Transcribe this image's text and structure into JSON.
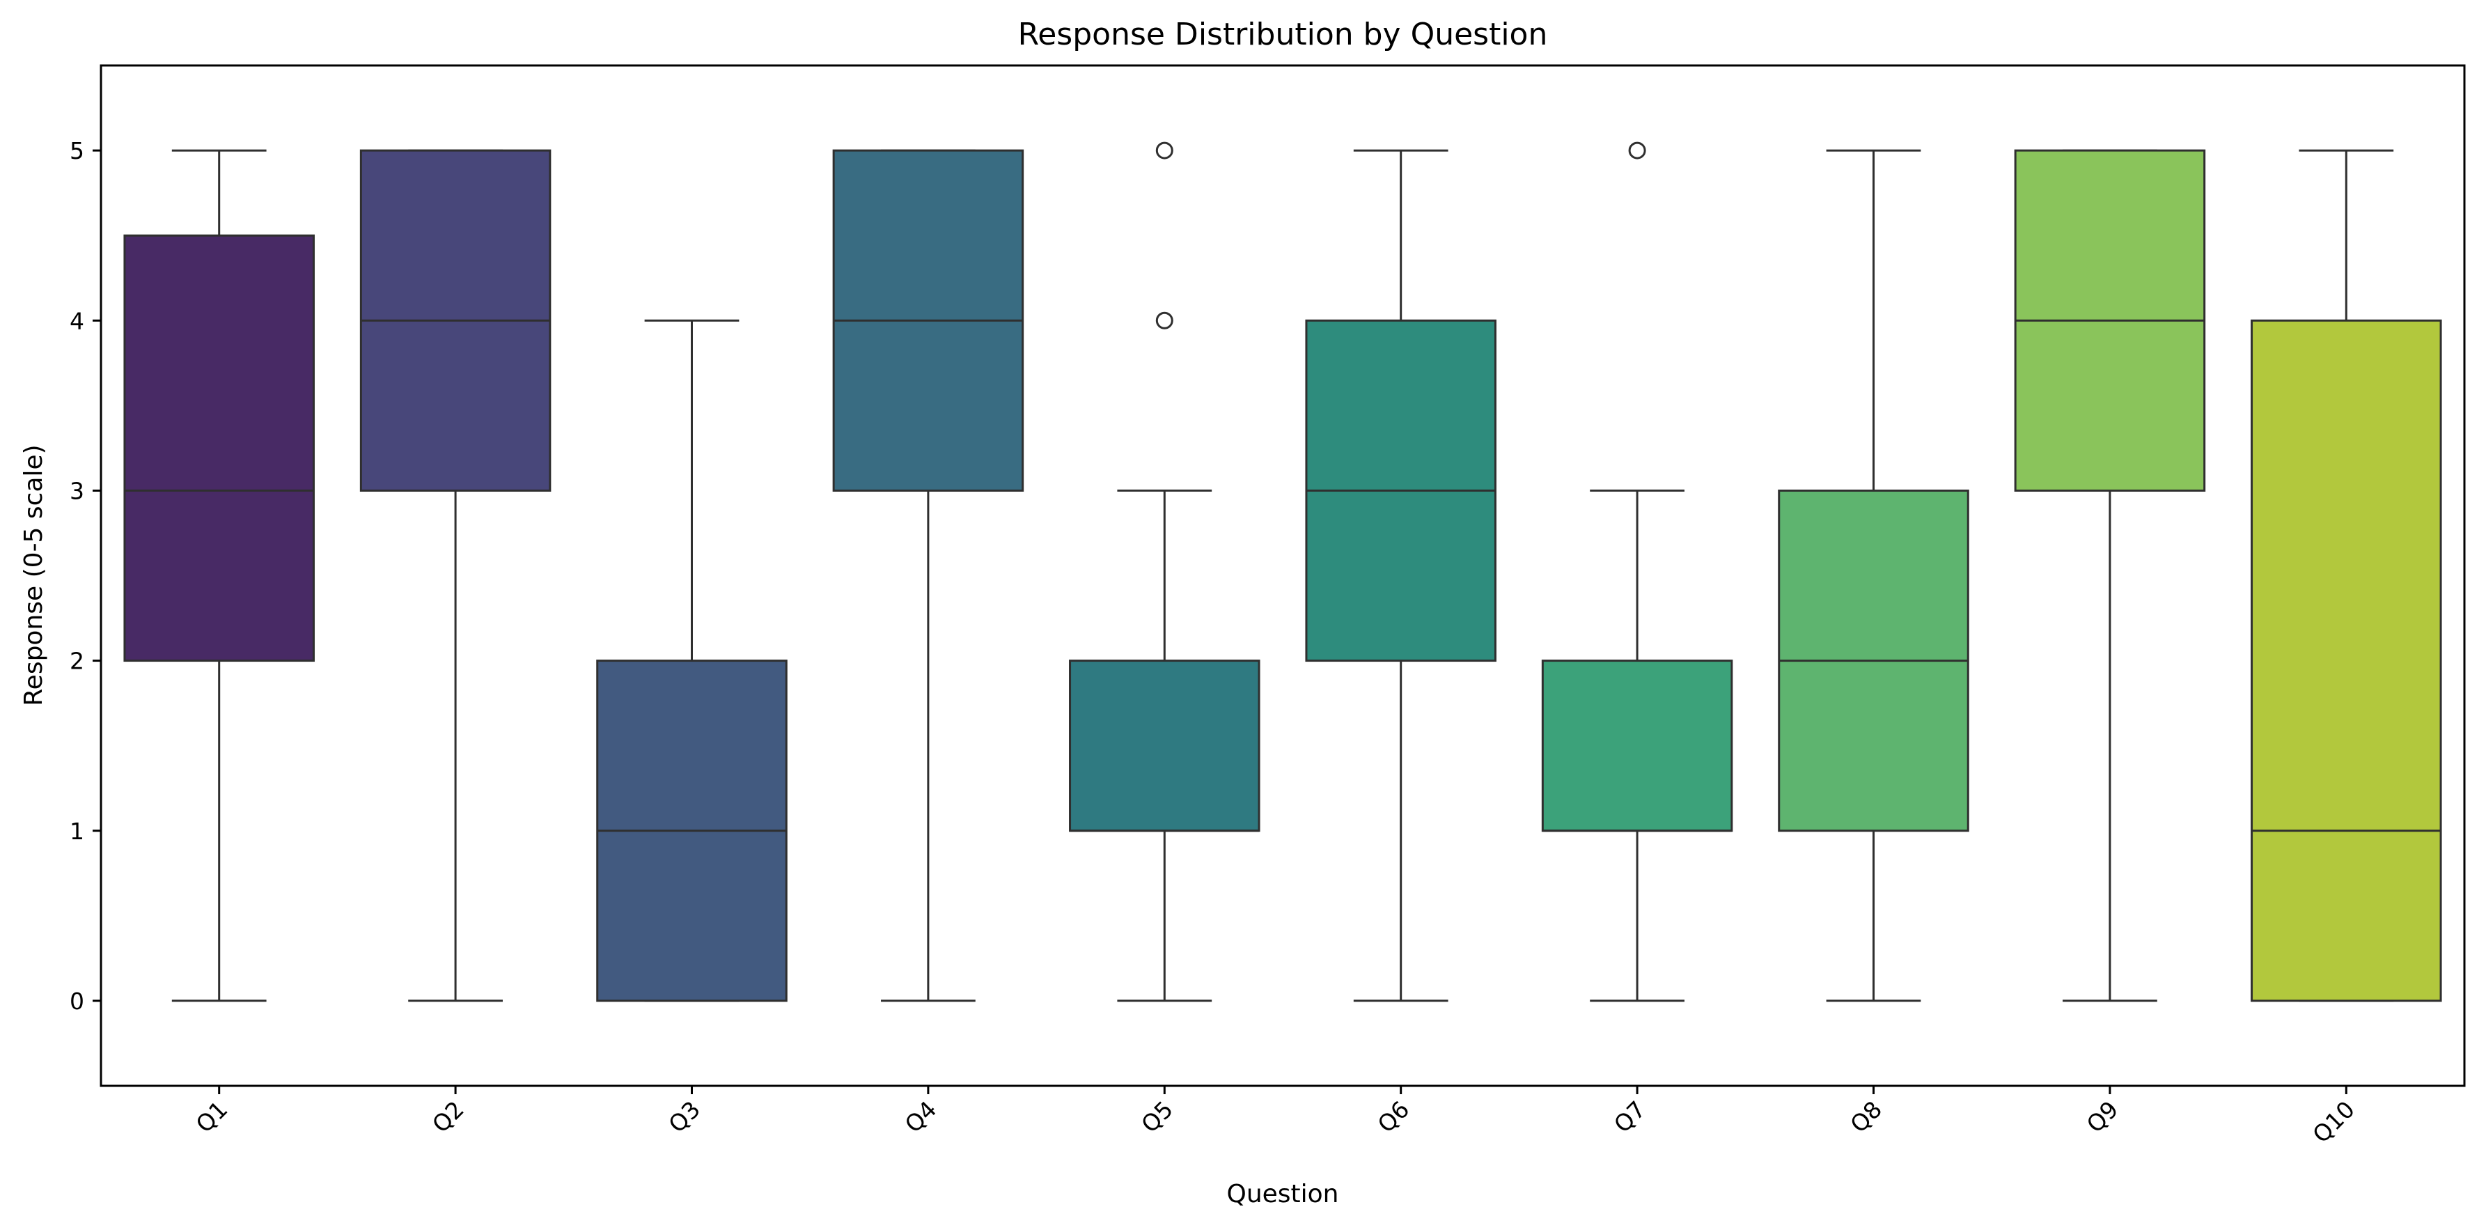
{
  "chart_data": {
    "type": "boxplot",
    "title": "Response Distribution by Question",
    "xlabel": "Question",
    "ylabel": "Response (0-5 scale)",
    "ylim": [
      -0.5,
      5.5
    ],
    "yticks": [
      "0",
      "1",
      "2",
      "3",
      "4",
      "5"
    ],
    "grid": false,
    "legend": "none",
    "categories": [
      "Q1",
      "Q2",
      "Q3",
      "Q4",
      "Q5",
      "Q6",
      "Q7",
      "Q8",
      "Q9",
      "Q10"
    ],
    "boxes": [
      {
        "category": "Q1",
        "whisker_low": 0,
        "q1": 2,
        "median": 3,
        "q3": 4.5,
        "whisker_high": 5,
        "outliers": [],
        "color": "#482A65"
      },
      {
        "category": "Q2",
        "whisker_low": 0,
        "q1": 3,
        "median": 4,
        "q3": 5,
        "whisker_high": 5,
        "outliers": [],
        "color": "#48477A"
      },
      {
        "category": "Q3",
        "whisker_low": 0,
        "q1": 0,
        "median": 1,
        "q3": 2,
        "whisker_high": 4,
        "outliers": [],
        "color": "#425A80"
      },
      {
        "category": "Q4",
        "whisker_low": 0,
        "q1": 3,
        "median": 4,
        "q3": 5,
        "whisker_high": 5,
        "outliers": [],
        "color": "#396C82"
      },
      {
        "category": "Q5",
        "whisker_low": 0,
        "q1": 1,
        "median": 1,
        "q3": 2,
        "whisker_high": 3,
        "outliers": [
          4,
          5
        ],
        "color": "#2F7A81"
      },
      {
        "category": "Q6",
        "whisker_low": 0,
        "q1": 2,
        "median": 3,
        "q3": 4,
        "whisker_high": 5,
        "outliers": [],
        "color": "#2E8C7D"
      },
      {
        "category": "Q7",
        "whisker_low": 0,
        "q1": 1,
        "median": 1,
        "q3": 2,
        "whisker_high": 3,
        "outliers": [
          5
        ],
        "color": "#3CA27A"
      },
      {
        "category": "Q8",
        "whisker_low": 0,
        "q1": 1,
        "median": 2,
        "q3": 3,
        "whisker_high": 5,
        "outliers": [],
        "color": "#5EB46F"
      },
      {
        "category": "Q9",
        "whisker_low": 0,
        "q1": 3,
        "median": 4,
        "q3": 5,
        "whisker_high": 5,
        "outliers": [],
        "color": "#8AC45B"
      },
      {
        "category": "Q10",
        "whisker_low": 0,
        "q1": 0,
        "median": 1,
        "q3": 4,
        "whisker_high": 5,
        "outliers": [],
        "color": "#B2C83D"
      }
    ]
  }
}
